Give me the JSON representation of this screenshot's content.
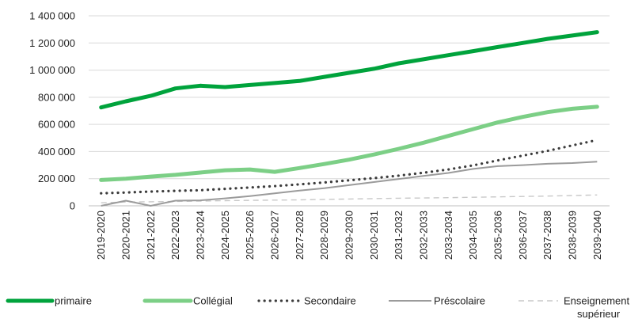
{
  "chart_data": {
    "type": "line",
    "title": "",
    "xlabel": "",
    "ylabel": "",
    "ylim": [
      0,
      1400000
    ],
    "yticks": [
      0,
      200000,
      400000,
      600000,
      800000,
      1000000,
      1200000,
      1400000
    ],
    "ytick_labels": [
      "0",
      "200 000",
      "400 000",
      "600 000",
      "800 000",
      "1 000 000",
      "1 200 000",
      "1 400 000"
    ],
    "grid": true,
    "legend_position": "bottom",
    "categories": [
      "2019-2020",
      "2020-2021",
      "2021-2022",
      "2022-2023",
      "2023-2024",
      "2024-2025",
      "2025-2026",
      "2026-2027",
      "2027-2028",
      "2028-2029",
      "2029-2030",
      "2030-2031",
      "2031-2032",
      "2032-2033",
      "2033-2034",
      "2034-2035",
      "2035-2036",
      "2036-2037",
      "2037-2038",
      "2038-2039",
      "2039-2040"
    ],
    "series": [
      {
        "name": "primaire",
        "color": "#00a33c",
        "style": "solid-thick",
        "values": [
          725000,
          770000,
          810000,
          865000,
          885000,
          875000,
          890000,
          905000,
          920000,
          950000,
          980000,
          1010000,
          1050000,
          1080000,
          1110000,
          1140000,
          1170000,
          1200000,
          1230000,
          1255000,
          1280000
        ]
      },
      {
        "name": "Collégial",
        "color": "#7ccf86",
        "style": "solid-thick",
        "values": [
          190000,
          200000,
          215000,
          228000,
          245000,
          262000,
          268000,
          250000,
          278000,
          308000,
          340000,
          378000,
          420000,
          465000,
          515000,
          565000,
          615000,
          655000,
          690000,
          715000,
          730000
        ]
      },
      {
        "name": "Secondaire",
        "color": "#3c3c3c",
        "style": "dotted",
        "values": [
          92000,
          98000,
          105000,
          110000,
          115000,
          125000,
          135000,
          145000,
          158000,
          172000,
          188000,
          204000,
          222000,
          244000,
          268000,
          298000,
          335000,
          370000,
          405000,
          445000,
          485000
        ]
      },
      {
        "name": "Préscolaire",
        "color": "#9b9b9b",
        "style": "solid-thin",
        "values": [
          0,
          38000,
          0,
          38000,
          40000,
          55000,
          72000,
          92000,
          112000,
          130000,
          152000,
          175000,
          198000,
          220000,
          242000,
          272000,
          292000,
          300000,
          310000,
          315000,
          325000
        ]
      },
      {
        "name": "Enseignement supérieur",
        "color": "#c8c8c8",
        "style": "dashed",
        "values": [
          22000,
          28000,
          30000,
          32000,
          35000,
          38000,
          40000,
          42000,
          44000,
          47000,
          50000,
          53000,
          56000,
          58000,
          60000,
          63000,
          66000,
          69000,
          72000,
          76000,
          80000
        ]
      }
    ],
    "legend": [
      {
        "label": "primaire"
      },
      {
        "label": "Collégial"
      },
      {
        "label": "Secondaire"
      },
      {
        "label": "Préscolaire"
      },
      {
        "label": "Enseignement",
        "label2": "supérieur"
      }
    ]
  }
}
